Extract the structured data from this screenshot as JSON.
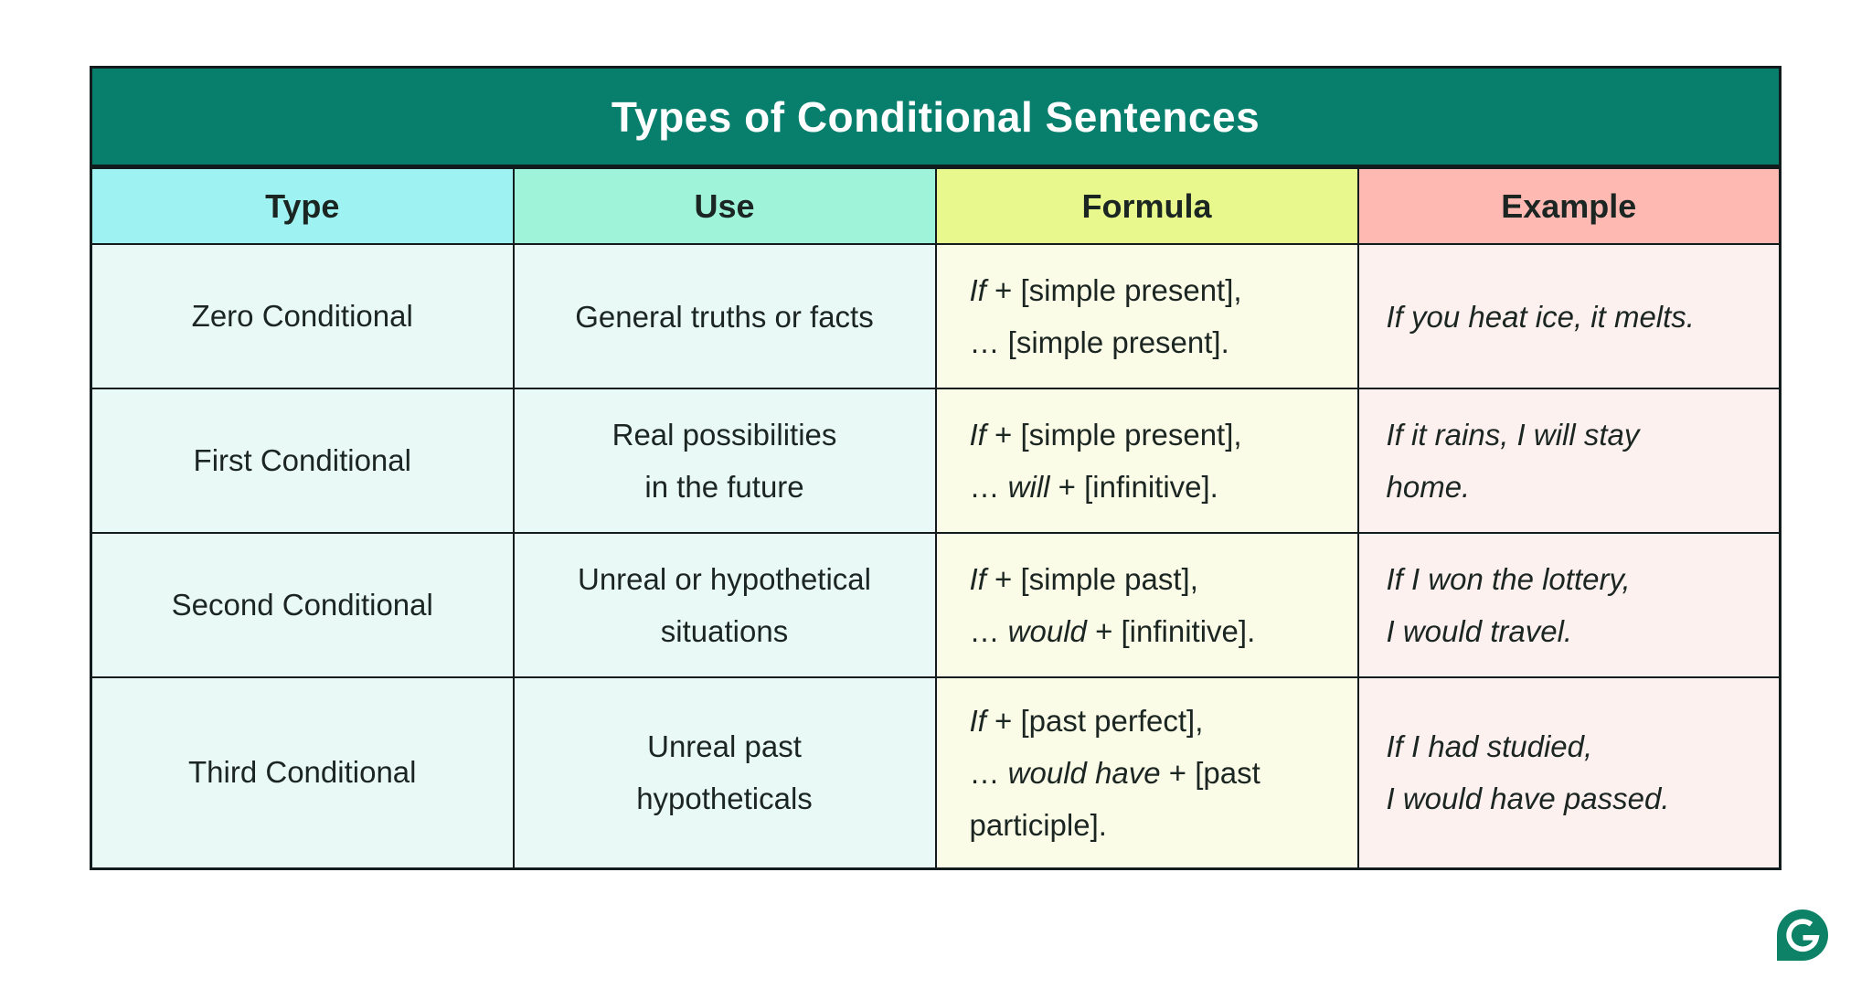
{
  "title": "Types of Conditional Sentences",
  "columns": [
    "Type",
    "Use",
    "Formula",
    "Example"
  ],
  "colors": {
    "title_bg": "#087f6d",
    "title_text": "#ffffff",
    "header_bgs": [
      "#9ef2f1",
      "#9ef3d9",
      "#e9f88d",
      "#ffb9b3"
    ],
    "column_body_bgs": [
      "#e9f9f6",
      "#e9f9f6",
      "#fbfce8",
      "#fdf1f0"
    ],
    "border": "#131c1c",
    "text": "#1b2521",
    "logo_teal": "#0e8266"
  },
  "rows": [
    {
      "type": "Zero Conditional",
      "use_lines": [
        "General truths or facts"
      ],
      "formula_lines": [
        [
          {
            "t": "If",
            "i": true
          },
          {
            "t": " + [simple present],",
            "i": false
          }
        ],
        [
          {
            "t": "… [simple present].",
            "i": false
          }
        ]
      ],
      "example_lines": [
        "If you heat ice, it melts."
      ]
    },
    {
      "type": "First Conditional",
      "use_lines": [
        "Real possibilities",
        "in the future"
      ],
      "formula_lines": [
        [
          {
            "t": "If",
            "i": true
          },
          {
            "t": " + [simple present],",
            "i": false
          }
        ],
        [
          {
            "t": "… ",
            "i": false
          },
          {
            "t": "will",
            "i": true
          },
          {
            "t": " + [infinitive].",
            "i": false
          }
        ]
      ],
      "example_lines": [
        "If it rains, I will stay",
        "home."
      ]
    },
    {
      "type": "Second Conditional",
      "use_lines": [
        "Unreal or hypothetical",
        "situations"
      ],
      "formula_lines": [
        [
          {
            "t": "If",
            "i": true
          },
          {
            "t": " + [simple past],",
            "i": false
          }
        ],
        [
          {
            "t": "… ",
            "i": false
          },
          {
            "t": "would",
            "i": true
          },
          {
            "t": " + [infinitive].",
            "i": false
          }
        ]
      ],
      "example_lines": [
        "If I won the lottery,",
        "I would travel."
      ]
    },
    {
      "type": "Third Conditional",
      "use_lines": [
        "Unreal past",
        "hypotheticals"
      ],
      "formula_lines": [
        [
          {
            "t": "If",
            "i": true
          },
          {
            "t": " + [past perfect],",
            "i": false
          }
        ],
        [
          {
            "t": "… ",
            "i": false
          },
          {
            "t": "would have",
            "i": true
          },
          {
            "t": " + [past",
            "i": false
          }
        ],
        [
          {
            "t": "participle].",
            "i": false
          }
        ]
      ],
      "example_lines": [
        "If I had studied,",
        "I would have passed."
      ]
    }
  ],
  "logo": {
    "letter": "G"
  }
}
